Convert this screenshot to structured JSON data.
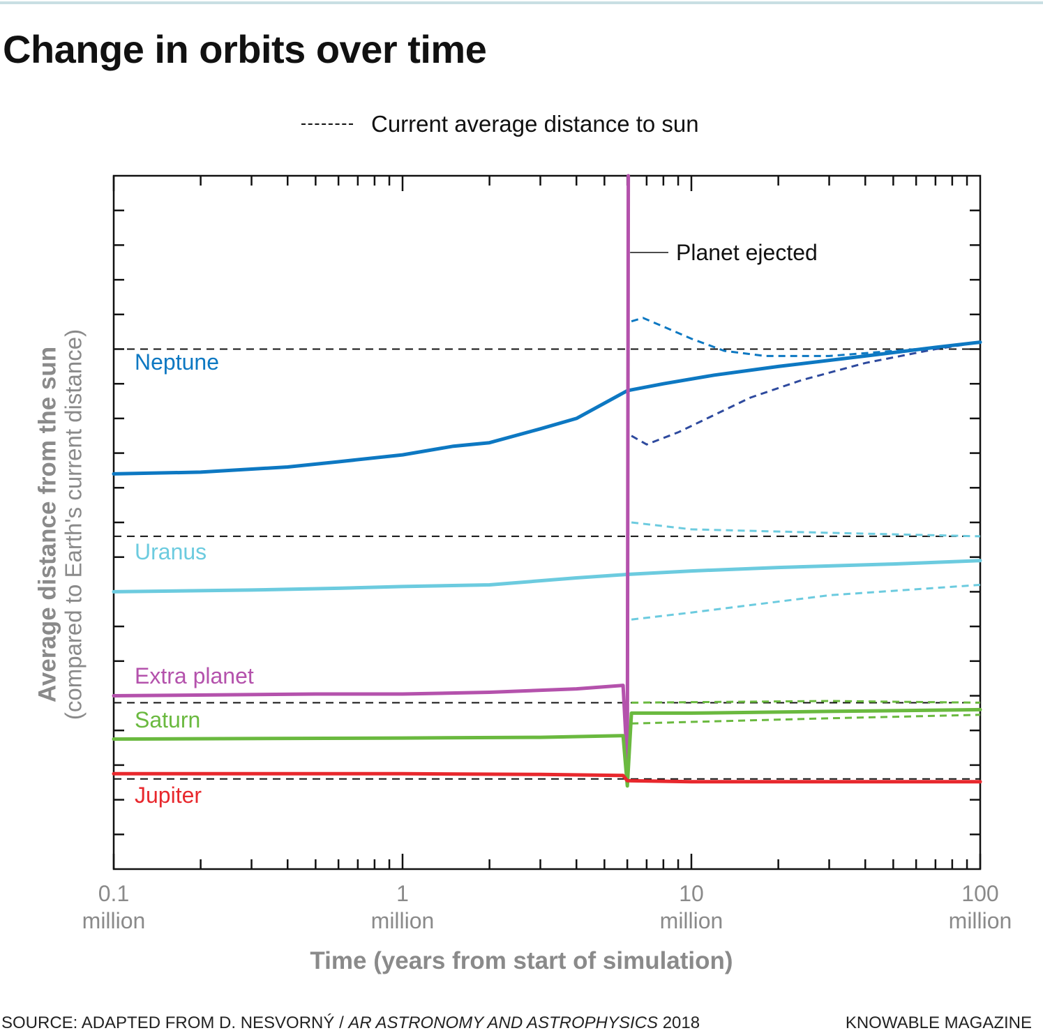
{
  "header": {
    "title": "Change in orbits over time"
  },
  "footer": {
    "source_prefix": "SOURCE: ADAPTED FROM D. NESVORNÝ / ",
    "source_journal": "AR ASTRONOMY AND ASTROPHYSICS",
    "source_year": " 2018",
    "publisher": "KNOWABLE MAGAZINE"
  },
  "colors": {
    "neptune": "#0d78c2",
    "neptune_dark": "#2e4a9e",
    "uranus": "#6ccbdf",
    "extra_planet": "#b452ac",
    "saturn": "#6ab93f",
    "jupiter": "#e8282d",
    "axis": "#111111",
    "axis_label": "#8a8a8a"
  },
  "chart_data": {
    "type": "line",
    "xscale": "log",
    "xlim": [
      0.1,
      100
    ],
    "ylim": [
      0,
      20
    ],
    "grid": false,
    "xlabel": "Time (years from start of simulation)",
    "ylabel": "Average distance from the sun",
    "ylabel_sub": "(compared to Earth's current distance)",
    "x_ticks": [
      {
        "value": 0.1,
        "label": "0.1",
        "sub": "million"
      },
      {
        "value": 1,
        "label": "1",
        "sub": "million"
      },
      {
        "value": 10,
        "label": "10",
        "sub": "million"
      },
      {
        "value": 100,
        "label": "100",
        "sub": "million"
      }
    ],
    "legend": {
      "label": "Current average distance to sun",
      "style": "dashed",
      "position": "top-center"
    },
    "reference_lines": [
      {
        "planet": "Neptune",
        "y": 15.0
      },
      {
        "planet": "Uranus",
        "y": 9.6
      },
      {
        "planet": "Saturn",
        "y": 4.8
      },
      {
        "planet": "Jupiter",
        "y": 2.6
      }
    ],
    "ejection": {
      "x": 6.0,
      "label": "Planet ejected"
    },
    "series": [
      {
        "name": "Neptune",
        "color": "#0d78c2",
        "points": [
          [
            0.1,
            11.4
          ],
          [
            0.2,
            11.45
          ],
          [
            0.4,
            11.6
          ],
          [
            0.6,
            11.75
          ],
          [
            1.0,
            11.95
          ],
          [
            1.5,
            12.2
          ],
          [
            2.0,
            12.3
          ],
          [
            3.0,
            12.7
          ],
          [
            4.0,
            13.0
          ],
          [
            6.0,
            13.8
          ],
          [
            8.0,
            14.0
          ],
          [
            12.0,
            14.25
          ],
          [
            20.0,
            14.5
          ],
          [
            40.0,
            14.8
          ],
          [
            70.0,
            15.05
          ],
          [
            100.0,
            15.2
          ]
        ],
        "dashed_after": [
          [
            6.2,
            15.8
          ],
          [
            6.8,
            15.9
          ],
          [
            8.0,
            15.65
          ],
          [
            10.0,
            15.3
          ],
          [
            13.0,
            14.95
          ],
          [
            18.0,
            14.8
          ],
          [
            30.0,
            14.8
          ],
          [
            60.0,
            15.0
          ],
          [
            100.0,
            15.2
          ]
        ],
        "dashed_inner": [
          [
            6.2,
            12.5
          ],
          [
            7.0,
            12.25
          ],
          [
            9.0,
            12.6
          ],
          [
            12.0,
            13.1
          ],
          [
            16.0,
            13.6
          ],
          [
            24.0,
            14.1
          ],
          [
            40.0,
            14.6
          ],
          [
            70.0,
            15.0
          ],
          [
            100.0,
            15.2
          ]
        ]
      },
      {
        "name": "Uranus",
        "color": "#6ccbdf",
        "points": [
          [
            0.1,
            8.0
          ],
          [
            0.3,
            8.05
          ],
          [
            0.6,
            8.1
          ],
          [
            1.0,
            8.15
          ],
          [
            2.0,
            8.2
          ],
          [
            4.0,
            8.4
          ],
          [
            6.0,
            8.5
          ],
          [
            10.0,
            8.6
          ],
          [
            20.0,
            8.7
          ],
          [
            50.0,
            8.8
          ],
          [
            100.0,
            8.9
          ]
        ],
        "dashed_after": [
          [
            6.2,
            10.0
          ],
          [
            10.0,
            9.8
          ],
          [
            30.0,
            9.7
          ],
          [
            100.0,
            9.6
          ]
        ],
        "dashed_inner": [
          [
            6.2,
            7.2
          ],
          [
            10.0,
            7.4
          ],
          [
            30.0,
            7.9
          ],
          [
            100.0,
            8.2
          ]
        ]
      },
      {
        "name": "Extra planet",
        "color": "#b452ac",
        "points": [
          [
            0.1,
            5.0
          ],
          [
            0.5,
            5.05
          ],
          [
            1.0,
            5.05
          ],
          [
            2.0,
            5.1
          ],
          [
            4.0,
            5.2
          ],
          [
            5.8,
            5.3
          ],
          [
            6.0,
            3.0
          ],
          [
            6.05,
            20.0
          ]
        ]
      },
      {
        "name": "Saturn",
        "color": "#6ab93f",
        "points": [
          [
            0.1,
            3.75
          ],
          [
            1.0,
            3.78
          ],
          [
            3.0,
            3.8
          ],
          [
            5.8,
            3.85
          ],
          [
            6.0,
            2.4
          ],
          [
            6.2,
            4.5
          ],
          [
            10.0,
            4.5
          ],
          [
            30.0,
            4.55
          ],
          [
            100.0,
            4.6
          ]
        ],
        "dashed_after": [
          [
            6.2,
            4.8
          ],
          [
            30.0,
            4.85
          ],
          [
            100.0,
            4.8
          ]
        ],
        "dashed_inner": [
          [
            6.2,
            4.2
          ],
          [
            30.0,
            4.35
          ],
          [
            100.0,
            4.45
          ]
        ]
      },
      {
        "name": "Jupiter",
        "color": "#e8282d",
        "points": [
          [
            0.1,
            2.75
          ],
          [
            1.0,
            2.75
          ],
          [
            3.0,
            2.73
          ],
          [
            5.8,
            2.7
          ],
          [
            6.0,
            2.55
          ],
          [
            10.0,
            2.52
          ],
          [
            30.0,
            2.52
          ],
          [
            100.0,
            2.52
          ]
        ]
      }
    ]
  }
}
